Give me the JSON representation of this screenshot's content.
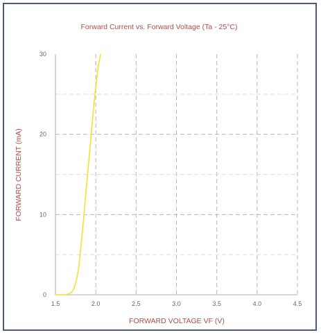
{
  "chart_data": {
    "type": "line",
    "title": "Forward Current vs. Forward Voltage (Ta - 25°C)",
    "xlabel": "FORWARD VOLTAGE VF (V)",
    "ylabel": "FORWARD CURRENT (mA)",
    "xlim": [
      1.5,
      4.5
    ],
    "ylim": [
      0,
      30
    ],
    "x_ticks": [
      "1.5",
      "2.0",
      "2.5",
      "3.0",
      "3.5",
      "4.0",
      "4.5"
    ],
    "y_ticks": [
      "0",
      "10",
      "20",
      "30"
    ],
    "grid": true,
    "series": [
      {
        "color": "#f2e22e",
        "x": [
          1.5,
          1.62,
          1.66,
          1.7,
          1.73,
          1.75,
          1.77,
          1.79,
          1.81,
          1.84,
          1.88,
          1.93,
          1.97,
          2.0,
          2.03,
          2.06
        ],
        "y": [
          0,
          0,
          0.1,
          0.3,
          0.8,
          1.5,
          2.3,
          3.5,
          5.5,
          8.5,
          13,
          18.5,
          23,
          26,
          28.5,
          30
        ]
      }
    ]
  },
  "colors": {
    "title": "#b04a4a",
    "frame": "#4a5a78",
    "grid_major": "#b5b5b5",
    "grid_minor": "#dddddd"
  }
}
